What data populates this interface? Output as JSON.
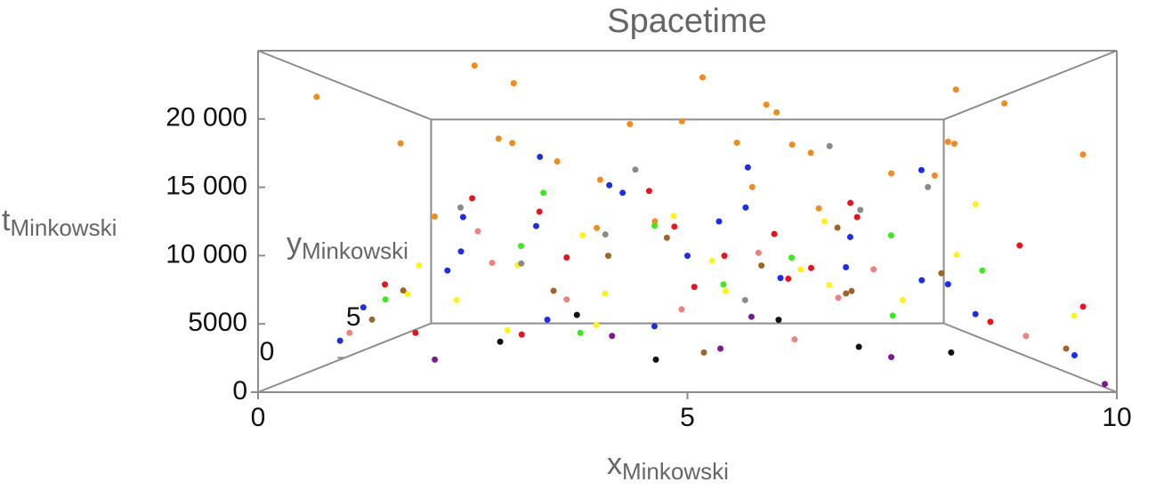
{
  "chart_data": {
    "type": "scatter3d",
    "title": "Spacetime",
    "xlabel": {
      "main": "x",
      "sub": "Minkowski"
    },
    "ylabel": {
      "main": "y",
      "sub": "Minkowski"
    },
    "zlabel": {
      "main": "t",
      "sub": "Minkowski"
    },
    "xlim": [
      0,
      10
    ],
    "ylim": [
      0,
      10
    ],
    "zlim": [
      0,
      25000
    ],
    "xticks": [
      0,
      5,
      10
    ],
    "yticks": [
      0,
      5
    ],
    "zticks": [
      0,
      5000,
      {
        "value": 10000,
        "label": "10 000"
      },
      {
        "value": 15000,
        "label": "15 000"
      },
      {
        "value": 20000,
        "label": "20 000"
      }
    ],
    "box": true,
    "series": [
      {
        "color": "#f28a1c",
        "x": [
          0.5,
          1.2,
          2.1,
          2.8,
          3.5,
          4.2,
          4.9,
          5.6,
          6.3,
          7.0,
          7.7,
          8.4,
          9.1,
          9.7,
          1.8,
          3.1,
          5.2,
          6.8,
          8.0,
          9.4,
          0.9,
          2.5,
          4.5,
          6.0,
          7.4,
          8.8,
          3.9,
          5.9
        ],
        "y": [
          1,
          3,
          6,
          2,
          8,
          4,
          9,
          1,
          5,
          7,
          3,
          2,
          6,
          0.5,
          9,
          5,
          3,
          8,
          1,
          4,
          7,
          0.2,
          6,
          2,
          9,
          5,
          1,
          4
        ],
        "z": [
          22000,
          19000,
          20500,
          23500,
          17000,
          21000,
          24000,
          18500,
          22500,
          19500,
          16500,
          23000,
          20000,
          17500,
          21500,
          18000,
          24500,
          20800,
          16000,
          22800,
          13000,
          24000,
          12500,
          21800,
          14000,
          19800,
          12000,
          15500
        ]
      },
      {
        "color": "#1f2ee0",
        "x": [
          0.6,
          1.5,
          2.4,
          3.3,
          4.1,
          5.0,
          5.8,
          6.7,
          7.5,
          8.3,
          9.2,
          0.9,
          2.0,
          3.8,
          4.6,
          6.0,
          7.2,
          8.8,
          9.6,
          5.4,
          1.1,
          3.0,
          7.9
        ],
        "y": [
          2,
          5,
          8,
          1,
          4,
          7,
          3,
          9,
          6,
          2,
          5,
          9,
          3,
          6,
          1,
          8,
          4,
          7,
          0.5,
          2,
          0.8,
          3.5,
          1.5
        ],
        "z": [
          3000,
          8000,
          12000,
          5000,
          15000,
          9000,
          17000,
          6000,
          11000,
          7500,
          4000,
          13000,
          10000,
          16000,
          4500,
          14000,
          8500,
          6500,
          2500,
          12500,
          6000,
          18000,
          16500
        ]
      },
      {
        "color": "#e8141c",
        "x": [
          0.8,
          1.7,
          2.6,
          3.4,
          4.3,
          5.1,
          6.1,
          6.9,
          7.8,
          8.6,
          9.4,
          1.3,
          2.9,
          4.8,
          6.4,
          8.1,
          9.8,
          5.6
        ],
        "y": [
          4,
          1,
          7,
          3,
          9,
          5,
          2,
          6,
          8,
          0.5,
          3,
          8,
          2,
          6,
          4,
          9,
          1,
          7
        ],
        "z": [
          7000,
          4000,
          13500,
          9500,
          16000,
          6500,
          11500,
          8000,
          14500,
          5000,
          10500,
          15000,
          3500,
          12000,
          7500,
          13000,
          6000,
          9000
        ]
      },
      {
        "color": "#fff21a",
        "x": [
          0.7,
          1.6,
          2.5,
          3.2,
          4.0,
          4.8,
          5.7,
          6.5,
          7.3,
          8.2,
          9.0,
          9.9,
          1.9,
          3.6,
          5.3,
          7.0,
          8.7,
          2.2
        ],
        "y": [
          6,
          2,
          4,
          8,
          1,
          5,
          9,
          3,
          7,
          0.5,
          4,
          2,
          9,
          6,
          1,
          5,
          8,
          1
        ],
        "z": [
          5500,
          9000,
          3000,
          11000,
          7000,
          13000,
          4500,
          8500,
          6000,
          10000,
          14000,
          5000,
          7500,
          2500,
          9500,
          12500,
          4000,
          6500
        ]
      },
      {
        "color": "#3ee81c",
        "x": [
          1.0,
          2.3,
          3.7,
          4.4,
          5.5,
          6.6,
          7.6,
          8.5,
          9.3,
          3.0
        ],
        "y": [
          3,
          7,
          1,
          9,
          4,
          6,
          2,
          8,
          5,
          4
        ],
        "z": [
          6000,
          10000,
          4000,
          12000,
          7000,
          9000,
          5000,
          11000,
          8000,
          15000
        ]
      },
      {
        "color": "#a0642a",
        "x": [
          0.4,
          1.4,
          2.7,
          3.9,
          5.2,
          6.2,
          7.1,
          8.0,
          8.9,
          9.5,
          4.7,
          6.9
        ],
        "y": [
          5,
          2,
          8,
          4,
          1,
          7,
          3,
          9,
          6,
          0.5,
          5,
          2
        ],
        "z": [
          3500,
          7000,
          5000,
          9500,
          2500,
          8000,
          6500,
          4500,
          7500,
          3000,
          11000,
          12000
        ]
      },
      {
        "color": "#f08080",
        "x": [
          0.9,
          2.0,
          3.4,
          4.9,
          5.9,
          7.2,
          8.4,
          9.7,
          1.6,
          6.3
        ],
        "y": [
          1,
          6,
          3,
          8,
          2,
          5,
          9,
          4,
          7,
          1
        ],
        "z": [
          4000,
          8500,
          6000,
          3000,
          10000,
          5500,
          7000,
          2500,
          11500,
          3500
        ]
      },
      {
        "color": "#8a8a8a",
        "x": [
          1.1,
          2.8,
          4.2,
          5.7,
          7.4,
          8.9,
          3.5,
          6.8
        ],
        "y": [
          8,
          3,
          6,
          1,
          4,
          7,
          9,
          2
        ],
        "z": [
          14000,
          9000,
          17500,
          6500,
          13500,
          16000,
          11000,
          18500
        ]
      },
      {
        "color": "#7a1a8e",
        "x": [
          1.8,
          3.9,
          5.4,
          7.7,
          9.9,
          6.1
        ],
        "y": [
          2,
          5,
          1,
          3,
          0.2,
          8
        ],
        "z": [
          1500,
          2000,
          2800,
          1200,
          500,
          2200
        ]
      },
      {
        "color": "#111111",
        "x": [
          2.4,
          4.6,
          6.4,
          8.2,
          3.1,
          7.5
        ],
        "y": [
          4,
          2,
          6,
          1,
          8,
          5
        ],
        "z": [
          2000,
          1500,
          3000,
          2500,
          2400,
          1000
        ]
      }
    ]
  }
}
